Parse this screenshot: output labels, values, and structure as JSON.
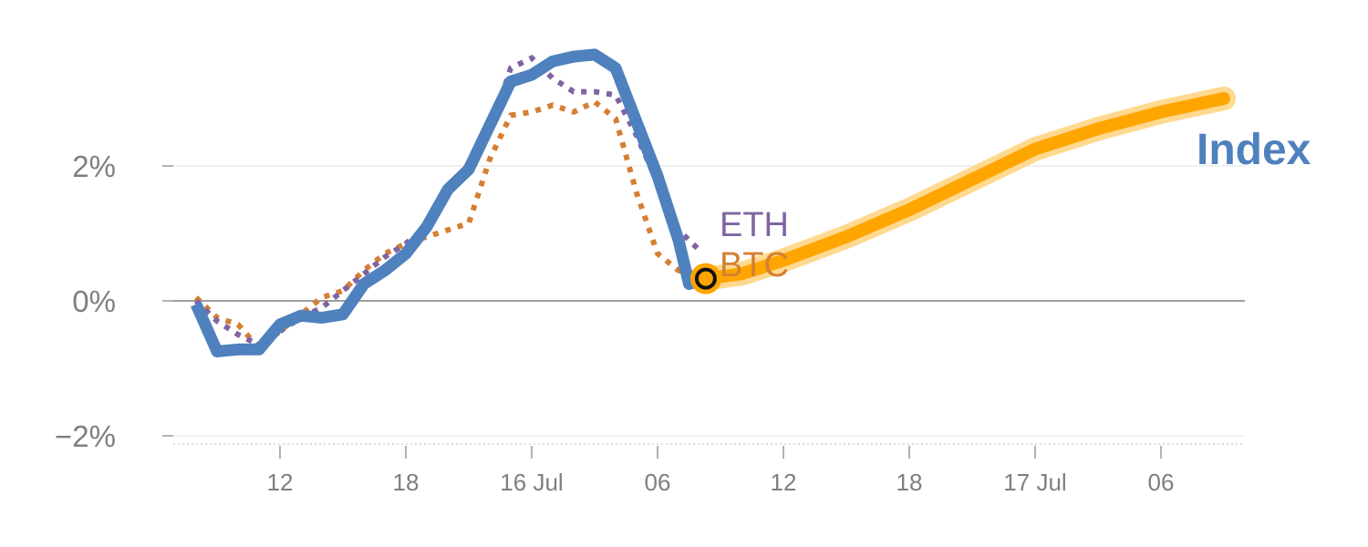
{
  "chart_data": {
    "type": "line",
    "title": "",
    "xlabel": "",
    "ylabel": "",
    "x_unit": "hours",
    "xlim": [
      -3.5,
      47.5
    ],
    "ylim": [
      -2.1,
      3.6
    ],
    "y_ticks": [
      {
        "value": -2,
        "label": "−2%"
      },
      {
        "value": 0,
        "label": "0%"
      },
      {
        "value": 2,
        "label": "2%"
      }
    ],
    "x_ticks": [
      {
        "value": 0,
        "label": "12"
      },
      {
        "value": 6,
        "label": "18"
      },
      {
        "value": 12,
        "label": "16 Jul"
      },
      {
        "value": 18,
        "label": "06"
      },
      {
        "value": 24,
        "label": "12"
      },
      {
        "value": 30,
        "label": "18"
      },
      {
        "value": 36,
        "label": "17 Jul"
      },
      {
        "value": 42,
        "label": "06"
      }
    ],
    "grid": true,
    "colors": {
      "index": "#4e81bd",
      "eth": "#8064a2",
      "btc": "#d47f32",
      "forecast": "#ffa500",
      "forecast_glow": "#ffd98f",
      "axis": "#7f7f7f",
      "grid": "#e6e6e6"
    },
    "series": [
      {
        "name": "Index",
        "style": "solid",
        "points": [
          [
            -4,
            -0.05
          ],
          [
            -3,
            -0.75
          ],
          [
            -2,
            -0.72
          ],
          [
            -1,
            -0.72
          ],
          [
            0,
            -0.35
          ],
          [
            1,
            -0.22
          ],
          [
            2,
            -0.25
          ],
          [
            3,
            -0.2
          ],
          [
            4,
            0.25
          ],
          [
            5,
            0.45
          ],
          [
            6,
            0.7
          ],
          [
            7,
            1.1
          ],
          [
            8,
            1.65
          ],
          [
            9,
            1.95
          ],
          [
            10,
            2.6
          ],
          [
            11,
            3.25
          ],
          [
            12,
            3.35
          ],
          [
            13,
            3.55
          ],
          [
            14,
            3.62
          ],
          [
            15,
            3.65
          ],
          [
            16,
            3.45
          ],
          [
            17,
            2.65
          ],
          [
            18,
            1.85
          ],
          [
            19,
            0.9
          ],
          [
            19.5,
            0.25
          ],
          [
            20.3,
            0.32
          ]
        ]
      },
      {
        "name": "ETH",
        "style": "dotted",
        "points": [
          [
            -4,
            0.0
          ],
          [
            -3,
            -0.3
          ],
          [
            -2,
            -0.5
          ],
          [
            -1,
            -0.65
          ],
          [
            0,
            -0.45
          ],
          [
            1,
            -0.25
          ],
          [
            2,
            -0.1
          ],
          [
            3,
            0.15
          ],
          [
            4,
            0.4
          ],
          [
            5,
            0.65
          ],
          [
            6,
            0.85
          ],
          [
            7,
            1.1
          ],
          [
            8,
            1.6
          ],
          [
            9,
            2.05
          ],
          [
            10,
            2.5
          ],
          [
            11,
            3.45
          ],
          [
            12,
            3.6
          ],
          [
            13,
            3.3
          ],
          [
            14,
            3.1
          ],
          [
            15,
            3.1
          ],
          [
            16,
            3.05
          ],
          [
            17,
            2.45
          ],
          [
            18,
            1.75
          ],
          [
            19,
            1.05
          ],
          [
            20,
            0.75
          ]
        ]
      },
      {
        "name": "BTC",
        "style": "dotted",
        "points": [
          [
            -4,
            0.05
          ],
          [
            -3,
            -0.25
          ],
          [
            -2,
            -0.35
          ],
          [
            -1,
            -0.7
          ],
          [
            0,
            -0.45
          ],
          [
            1,
            -0.2
          ],
          [
            2,
            0.05
          ],
          [
            3,
            0.15
          ],
          [
            4,
            0.45
          ],
          [
            5,
            0.7
          ],
          [
            6,
            0.85
          ],
          [
            7,
            0.95
          ],
          [
            8,
            1.05
          ],
          [
            9,
            1.15
          ],
          [
            10,
            2.1
          ],
          [
            11,
            2.75
          ],
          [
            12,
            2.8
          ],
          [
            13,
            2.9
          ],
          [
            14,
            2.8
          ],
          [
            15,
            2.95
          ],
          [
            16,
            2.7
          ],
          [
            17,
            1.6
          ],
          [
            18,
            0.7
          ],
          [
            19,
            0.45
          ],
          [
            20.3,
            0.38
          ]
        ]
      },
      {
        "name": "Index forecast",
        "style": "forecast",
        "points": [
          [
            20.3,
            0.33
          ],
          [
            22,
            0.4
          ],
          [
            24,
            0.6
          ],
          [
            27,
            0.95
          ],
          [
            30,
            1.35
          ],
          [
            33,
            1.8
          ],
          [
            36,
            2.25
          ],
          [
            39,
            2.55
          ],
          [
            42,
            2.8
          ],
          [
            45,
            3.0
          ]
        ]
      }
    ],
    "marker": {
      "x": 20.3,
      "y": 0.33
    },
    "labels": {
      "index": "Index",
      "eth": "ETH",
      "btc": "BTC"
    }
  }
}
